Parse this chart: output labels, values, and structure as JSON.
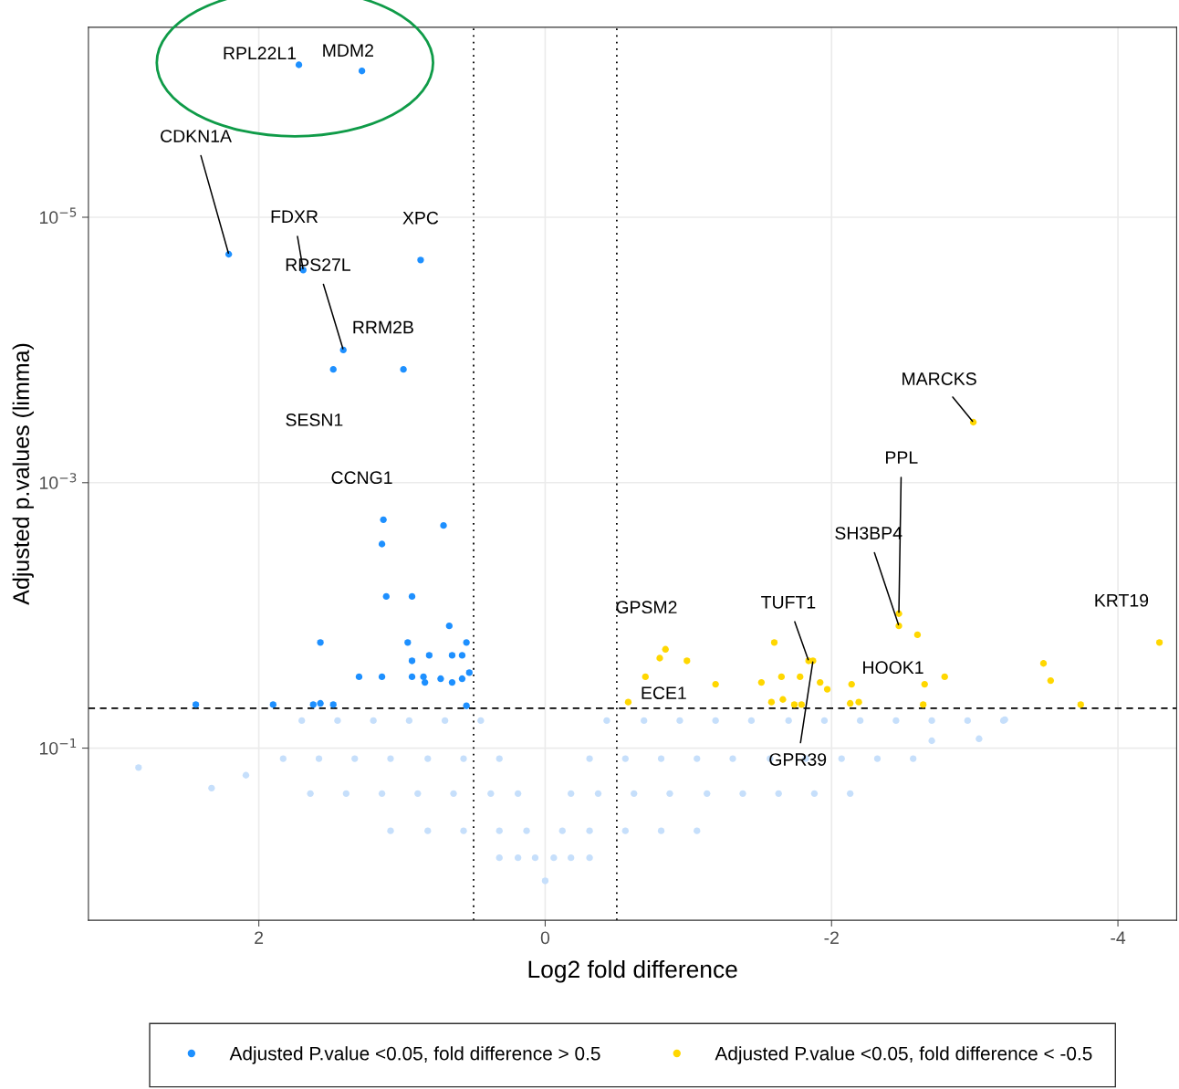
{
  "chart_data": {
    "type": "scatter",
    "xlabel": "Log2 fold difference",
    "ylabel": "Adjusted p.values (limma)",
    "xlim": [
      3.19,
      -4.41
    ],
    "xticks": [
      2,
      0,
      -2,
      -4
    ],
    "ylim": [
      1.98,
      3.7e-07
    ],
    "log": "y",
    "yticks": [
      {
        "value": 1e-05,
        "label": "10$^{−5}$"
      },
      {
        "value": 0.001,
        "label": "10$^{−3}$"
      },
      {
        "value": 0.1,
        "label": "10$^{−1}$"
      }
    ],
    "grid": true,
    "legend": "bottom",
    "marker": "circle",
    "series": [
      {
        "name": "Adjusted P.value <0.05, fold difference > 0.5",
        "color": "#1e90ff",
        "x": [
          1.72,
          1.28,
          2.21,
          1.69,
          0.87,
          1.41,
          1.48,
          0.99,
          1.13,
          0.71,
          1.14,
          1.11,
          0.93,
          0.67,
          1.57,
          0.96,
          0.81,
          0.93,
          0.65,
          0.58,
          0.55,
          1.3,
          1.14,
          0.93,
          0.85,
          0.73,
          0.65,
          0.58,
          0.53,
          0.84,
          2.44,
          1.9,
          1.62,
          1.57,
          1.48,
          0.55
        ],
        "values": [
          7.1e-07,
          7.9e-07,
          1.9e-05,
          2.5e-05,
          2.1e-05,
          0.0001,
          0.00014,
          0.00014,
          0.0019,
          0.0021,
          0.0029,
          0.0072,
          0.0072,
          0.012,
          0.016,
          0.016,
          0.02,
          0.022,
          0.02,
          0.02,
          0.016,
          0.029,
          0.029,
          0.029,
          0.029,
          0.03,
          0.032,
          0.03,
          0.027,
          0.032,
          0.047,
          0.047,
          0.047,
          0.046,
          0.047,
          0.048
        ]
      },
      {
        "name": "Adjusted P.value <0.05, fold difference < -0.5",
        "color": "#ffd700",
        "x": [
          -2.99,
          -2.47,
          -2.47,
          -1.6,
          -4.29,
          -0.84,
          -0.8,
          -0.99,
          -0.7,
          -1.19,
          -1.51,
          -1.65,
          -1.78,
          -1.84,
          -1.87,
          -1.92,
          -1.97,
          -2.14,
          -2.6,
          -2.65,
          -2.79,
          -3.48,
          -3.53,
          -0.58,
          -1.79,
          -1.58,
          -1.66,
          -2.13,
          -2.19,
          -2.64,
          -3.74,
          -1.74
        ],
        "values": [
          0.00035,
          0.0097,
          0.012,
          0.016,
          0.016,
          0.018,
          0.021,
          0.022,
          0.029,
          0.033,
          0.032,
          0.029,
          0.029,
          0.022,
          0.022,
          0.032,
          0.036,
          0.033,
          0.014,
          0.033,
          0.029,
          0.023,
          0.031,
          0.045,
          0.047,
          0.045,
          0.043,
          0.046,
          0.045,
          0.047,
          0.047,
          0.047
        ]
      },
      {
        "color": "#c6dffb",
        "x": [
          1.7,
          1.45,
          1.2,
          0.95,
          0.7,
          0.45,
          -0.43,
          -0.69,
          -0.94,
          -1.19,
          -1.44,
          -1.7,
          -1.95,
          -2.2,
          -2.45,
          -2.7,
          -2.95,
          -3.2,
          1.83,
          1.58,
          1.33,
          1.08,
          0.82,
          0.57,
          0.32,
          -0.31,
          -0.56,
          -0.81,
          -1.06,
          -1.31,
          -1.57,
          -1.82,
          -2.07,
          -2.32,
          -2.57,
          1.64,
          1.39,
          1.14,
          0.89,
          0.64,
          0.38,
          0.19,
          -0.18,
          -0.37,
          -0.62,
          -0.87,
          -1.13,
          -1.38,
          -1.63,
          -1.88,
          -2.13,
          1.08,
          0.82,
          0.57,
          0.32,
          0.13,
          -0.12,
          -0.31,
          -0.56,
          -0.81,
          -1.06,
          0.32,
          0.19,
          0.07,
          -0.06,
          -0.18,
          -0.31,
          0.0,
          2.84,
          2.33,
          2.09,
          -3.03,
          -3.21,
          -2.7
        ],
        "values": [
          0.062,
          0.062,
          0.062,
          0.062,
          0.062,
          0.062,
          0.062,
          0.062,
          0.062,
          0.062,
          0.062,
          0.062,
          0.062,
          0.062,
          0.062,
          0.062,
          0.062,
          0.062,
          0.12,
          0.12,
          0.12,
          0.12,
          0.12,
          0.12,
          0.12,
          0.12,
          0.12,
          0.12,
          0.12,
          0.12,
          0.12,
          0.12,
          0.12,
          0.12,
          0.12,
          0.22,
          0.22,
          0.22,
          0.22,
          0.22,
          0.22,
          0.22,
          0.22,
          0.22,
          0.22,
          0.22,
          0.22,
          0.22,
          0.22,
          0.22,
          0.22,
          0.42,
          0.42,
          0.42,
          0.42,
          0.42,
          0.42,
          0.42,
          0.42,
          0.42,
          0.42,
          0.67,
          0.67,
          0.67,
          0.67,
          0.67,
          0.67,
          1.0,
          0.14,
          0.2,
          0.16,
          0.085,
          0.061,
          0.088
        ]
      }
    ],
    "ref_lines": [
      {
        "axis": "x",
        "value": 0.5,
        "line_style": "dotted",
        "color": "#000000"
      },
      {
        "axis": "x",
        "value": -0.5,
        "line_style": "dotted",
        "color": "#000000"
      },
      {
        "axis": "y",
        "value": 0.05,
        "line_style": "dashed",
        "color": "#000000"
      }
    ],
    "annotations": [
      {
        "text": "RPL22L1",
        "x": 1.72,
        "y": 7.1e-07
      },
      {
        "text": "MDM2",
        "x": 1.28,
        "y": 7.9e-07
      },
      {
        "text": "CDKN1A",
        "x": 2.21,
        "y": 1.9e-05
      },
      {
        "text": "FDXR",
        "x": 1.69,
        "y": 2.5e-05
      },
      {
        "text": "XPC",
        "x": 0.87,
        "y": 2.1e-05
      },
      {
        "text": "RPS27L",
        "x": 1.41,
        "y": 0.0001
      },
      {
        "text": "RRM2B",
        "x": 0.99,
        "y": 0.00014
      },
      {
        "text": "SESN1",
        "x": 1.48,
        "y": 0.00014
      },
      {
        "text": "CCNG1",
        "x": 1.13,
        "y": 0.0019
      },
      {
        "text": "MARCKS",
        "x": -2.99,
        "y": 0.00035
      },
      {
        "text": "PPL",
        "x": -2.47,
        "y": 0.0097
      },
      {
        "text": "SH3BP4",
        "x": -2.47,
        "y": 0.012
      },
      {
        "text": "GPSM2",
        "x": -0.84,
        "y": 0.018
      },
      {
        "text": "TUFT1",
        "x": -1.84,
        "y": 0.022
      },
      {
        "text": "KRT19",
        "x": -4.29,
        "y": 0.016
      },
      {
        "text": "HOOK1",
        "x": -2.65,
        "y": 0.033
      },
      {
        "text": "ECE1",
        "x": -0.58,
        "y": 0.045
      },
      {
        "text": "GPR39",
        "x": -1.87,
        "y": 0.022
      }
    ]
  }
}
